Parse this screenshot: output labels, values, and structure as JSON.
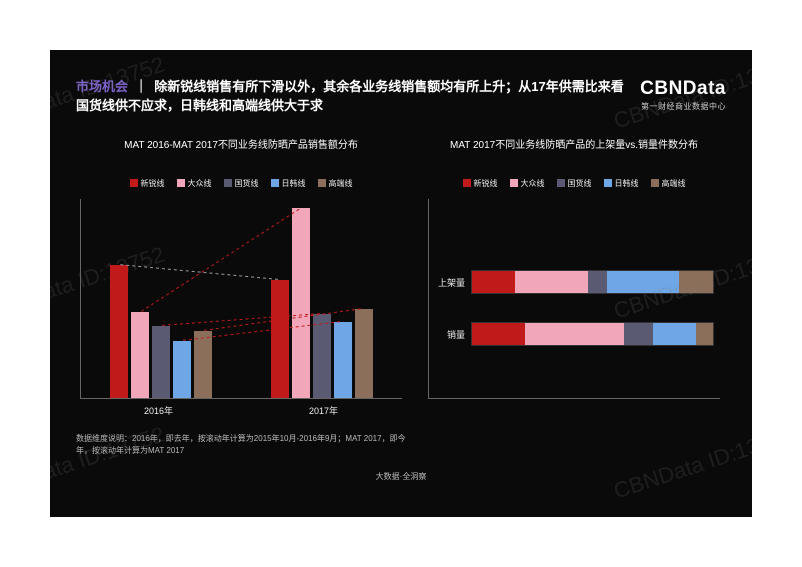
{
  "watermark_text": "CBNData ID:13752",
  "header": {
    "tag": "市场机会",
    "divider": "｜",
    "headline": "除新锐线销售有所下滑以外，其余各业务线销售额均有所上升；从17年供需比来看国货线供不应求，日韩线和高端线供大于求",
    "logo": "CBNData",
    "logo_sub": "第一财经商业数据中心"
  },
  "series": [
    {
      "key": "xinrui",
      "label": "新锐线",
      "color": "#c11a1a"
    },
    {
      "key": "dazhong",
      "label": "大众线",
      "color": "#f2a6ba"
    },
    {
      "key": "guohuo",
      "label": "国货线",
      "color": "#5a5a73"
    },
    {
      "key": "rihan",
      "label": "日韩线",
      "color": "#6fa7e6"
    },
    {
      "key": "gaoduan",
      "label": "高端线",
      "color": "#8c6f5a"
    }
  ],
  "left_chart": {
    "title": "MAT 2016-MAT  2017不同业务线防晒产品销售额分布",
    "ymax": 100,
    "groups": [
      {
        "label": "2016年",
        "values": {
          "xinrui": 70,
          "dazhong": 45,
          "guohuo": 38,
          "rihan": 30,
          "gaoduan": 35
        }
      },
      {
        "label": "2017年",
        "values": {
          "xinrui": 62,
          "dazhong": 100,
          "guohuo": 44,
          "rihan": 40,
          "gaoduan": 47
        }
      }
    ],
    "trend": {
      "color_up": "#c11a1a",
      "color_neutral": "#9aa0a6"
    },
    "footnote": "数据维度说明：2016年，即去年，按滚动年计算为2015年10月-2016年9月；MAT 2017，即今年，按滚动年计算为MAT 2017"
  },
  "right_chart": {
    "title": "MAT 2017不同业务线防晒产品的上架量vs.销量件数分布",
    "rows": [
      {
        "label": "上架量",
        "segments": {
          "xinrui": 18,
          "dazhong": 30,
          "guohuo": 8,
          "rihan": 30,
          "gaoduan": 14
        }
      },
      {
        "label": "销量",
        "segments": {
          "xinrui": 22,
          "dazhong": 41,
          "guohuo": 12,
          "rihan": 18,
          "gaoduan": 7
        }
      }
    ]
  },
  "source_line": "大数据·全洞察",
  "background_color": "#0a0a0a",
  "text_color": "#ffffff"
}
